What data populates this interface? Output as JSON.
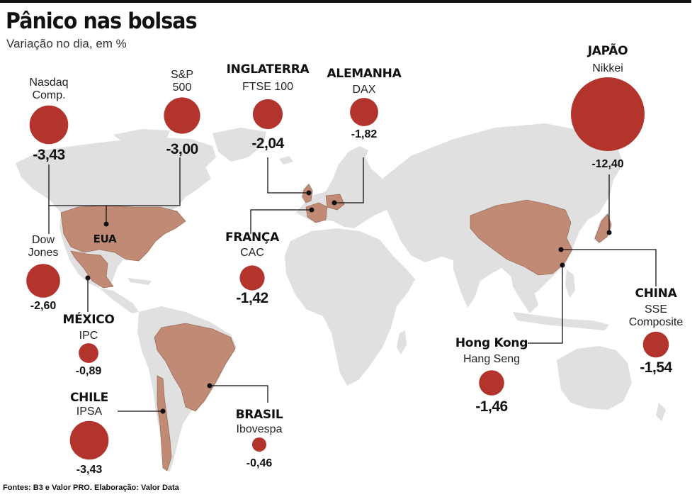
{
  "title": "Pânico nas bolsas",
  "subtitle": "Variação no dia, em %",
  "source": "Fontes: B3 e Valor PRO. Elaboração: Valor Data",
  "map_label": "EUA",
  "colors": {
    "bubble": "#b3342c",
    "land": "#e0e0e0",
    "highlight": "#c08a74",
    "leader": "#111111"
  },
  "chart_data": {
    "type": "bubble-map",
    "title": "Pânico nas bolsas",
    "subtitle": "Variação no dia, em %",
    "unit": "%",
    "markets": [
      {
        "id": "nasdaq",
        "country": "",
        "index": "Nasdaq Comp.",
        "value": -3.43,
        "value_label": "-3,43"
      },
      {
        "id": "sp500",
        "country": "",
        "index": "S&P 500",
        "value": -3.0,
        "value_label": "-3,00"
      },
      {
        "id": "dow",
        "country": "",
        "index": "Dow Jones",
        "value": -2.6,
        "value_label": "-2,60"
      },
      {
        "id": "mexico",
        "country": "MÉXICO",
        "index": "IPC",
        "value": -0.89,
        "value_label": "-0,89"
      },
      {
        "id": "chile",
        "country": "CHILE",
        "index": "IPSA",
        "value": -3.43,
        "value_label": "-3,43"
      },
      {
        "id": "brasil",
        "country": "BRASIL",
        "index": "Ibovespa",
        "value": -0.46,
        "value_label": "-0,46"
      },
      {
        "id": "inglaterra",
        "country": "INGLATERRA",
        "index": "FTSE 100",
        "value": -2.04,
        "value_label": "-2,04"
      },
      {
        "id": "alemanha",
        "country": "ALEMANHA",
        "index": "DAX",
        "value": -1.82,
        "value_label": "-1,82"
      },
      {
        "id": "franca",
        "country": "FRANÇA",
        "index": "CAC",
        "value": -1.42,
        "value_label": "-1,42"
      },
      {
        "id": "japao",
        "country": "JAPÃO",
        "index": "Nikkei",
        "value": -12.4,
        "value_label": "-12,40"
      },
      {
        "id": "china",
        "country": "CHINA",
        "index": "SSE Composite",
        "value": -1.54,
        "value_label": "-1,54"
      },
      {
        "id": "hongkong",
        "country": "Hong Kong",
        "index": "Hang Seng",
        "value": -1.46,
        "value_label": "-1,46"
      }
    ]
  }
}
